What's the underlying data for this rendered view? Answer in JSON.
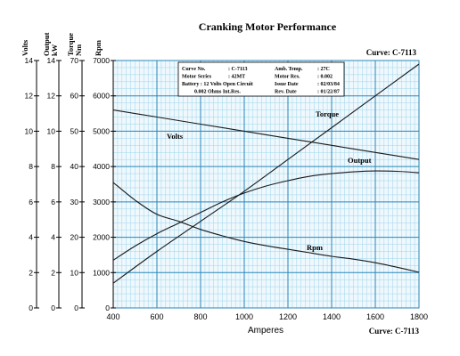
{
  "chart_data": {
    "type": "line",
    "title": "Cranking Motor Performance",
    "curve_label": "Curve: C-7113",
    "xlabel": "Amperes",
    "xlim": [
      400,
      1800
    ],
    "x_ticks": [
      "400",
      "600",
      "800",
      "1000",
      "1200",
      "1400",
      "1600",
      "1800"
    ],
    "grid": true,
    "axes": [
      {
        "name": "Volts",
        "ticks": [
          "0",
          "2",
          "4",
          "6",
          "8",
          "10",
          "12",
          "14"
        ],
        "range": [
          0,
          14
        ]
      },
      {
        "name": "Output kW",
        "ticks": [
          "0",
          "2",
          "4",
          "6",
          "8",
          "10",
          "12",
          "14"
        ],
        "range": [
          0,
          14
        ]
      },
      {
        "name": "Torque Nm",
        "ticks": [
          "0",
          "10",
          "20",
          "30",
          "40",
          "50",
          "60",
          "70"
        ],
        "range": [
          0,
          70
        ]
      },
      {
        "name": "Rpm",
        "ticks": [
          "0",
          "1000",
          "2000",
          "3000",
          "4000",
          "5000",
          "6000",
          "7000"
        ],
        "range": [
          0,
          7000
        ]
      }
    ],
    "series": [
      {
        "name": "Volts",
        "axis": "Volts",
        "x": [
          400,
          600,
          800,
          1000,
          1200,
          1400,
          1600,
          1800
        ],
        "y": [
          11.2,
          10.8,
          10.4,
          10.0,
          9.6,
          9.2,
          8.8,
          8.4
        ]
      },
      {
        "name": "Torque",
        "axis": "Torque Nm",
        "x": [
          400,
          600,
          800,
          1000,
          1200,
          1400,
          1600,
          1800
        ],
        "y": [
          7,
          16,
          24.5,
          33,
          42,
          51,
          60,
          69
        ]
      },
      {
        "name": "Output",
        "axis": "Output kW",
        "x": [
          400,
          500,
          600,
          700,
          800,
          900,
          1000,
          1100,
          1200,
          1300,
          1400,
          1500,
          1600,
          1700,
          1800
        ],
        "y": [
          2.7,
          3.5,
          4.2,
          4.8,
          5.4,
          6.0,
          6.5,
          6.9,
          7.2,
          7.45,
          7.6,
          7.7,
          7.75,
          7.73,
          7.65
        ]
      },
      {
        "name": "Rpm",
        "axis": "Rpm",
        "x": [
          400,
          500,
          600,
          700,
          800,
          900,
          1000,
          1100,
          1200,
          1300,
          1400,
          1500,
          1600,
          1700,
          1800
        ],
        "y": [
          3550,
          3050,
          2650,
          2450,
          2220,
          2040,
          1880,
          1760,
          1660,
          1560,
          1460,
          1380,
          1280,
          1150,
          1010
        ]
      }
    ],
    "info_box": {
      "rows": [
        [
          "Curve No.",
          ": C-7113",
          "Amb. Temp.",
          ": 27C"
        ],
        [
          "Motor Series",
          ": 42MT",
          "Motor Res.",
          ": 0.002"
        ],
        [
          "Battery : 12 Volts Open Circuit",
          "",
          "Issue Date",
          ": 02/03/84"
        ],
        [
          "0.002 Ohms Int.Res.",
          "",
          "Rev. Date",
          ": 01/22/87"
        ]
      ]
    }
  }
}
